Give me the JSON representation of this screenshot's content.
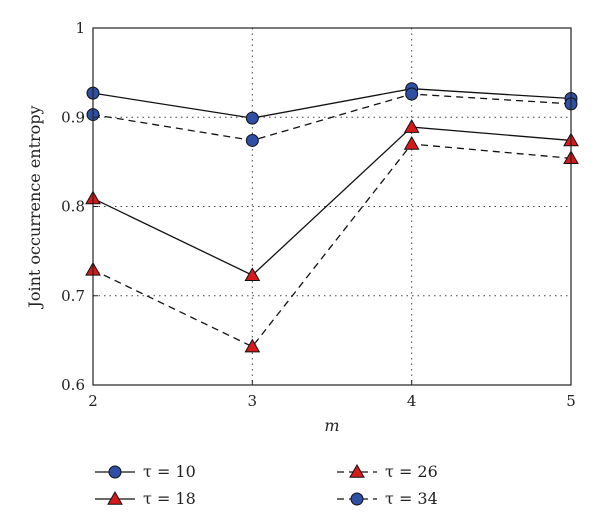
{
  "chart_data": {
    "type": "line",
    "xlabel": "m",
    "ylabel": "Joint occurrence entropy",
    "x": [
      2,
      3,
      4,
      5
    ],
    "xlim": [
      2,
      5
    ],
    "ylim": [
      0.6,
      1.0
    ],
    "xticks": [
      "2",
      "3",
      "4",
      "5"
    ],
    "yticks": [
      "0.6",
      "0.7",
      "0.8",
      "0.9",
      "1"
    ],
    "grid": true,
    "series": [
      {
        "name": "τ = 10",
        "values": [
          0.927,
          0.899,
          0.932,
          0.921
        ],
        "marker": "circle",
        "line": "solid",
        "color": "#2e4fa3"
      },
      {
        "name": "τ = 18",
        "values": [
          0.809,
          0.723,
          0.889,
          0.874
        ],
        "marker": "triangle",
        "line": "solid",
        "color": "#d7191c"
      },
      {
        "name": "τ = 26",
        "values": [
          0.729,
          0.643,
          0.87,
          0.854
        ],
        "marker": "triangle",
        "line": "dashed",
        "color": "#d7191c"
      },
      {
        "name": "τ = 34",
        "values": [
          0.903,
          0.874,
          0.926,
          0.915
        ],
        "marker": "circle",
        "line": "dashed",
        "color": "#2e4fa3"
      }
    ],
    "legend_placement": "bottom"
  }
}
